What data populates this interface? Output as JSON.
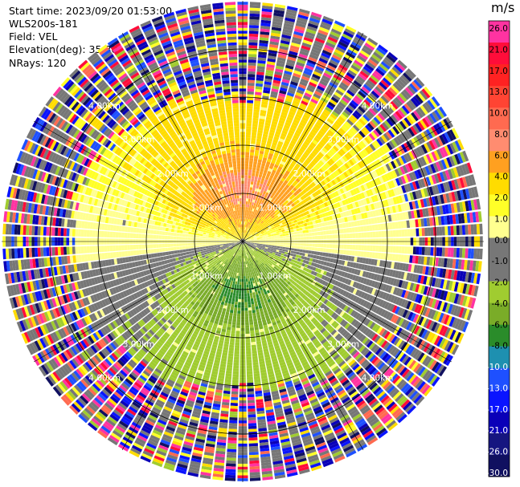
{
  "header": {
    "start_time": "Start time: 2023/09/20 01:53:00",
    "instrument": "WLS200s-181",
    "field": "Field: VEL",
    "elevation": "Elevation(deg): 35.30",
    "nrays": "NRays: 120"
  },
  "chart_data": {
    "type": "heatmap",
    "projection": "polar-ppi",
    "field": "VEL",
    "nrays": 120,
    "elevation_deg": 35.3,
    "range_rings_km": [
      1.0,
      2.0,
      3.0,
      4.0
    ],
    "ring_labels": [
      "1.00km",
      "2.00km",
      "3.00km",
      "4.00km"
    ],
    "max_range_km": 5.0,
    "colorbar": {
      "unit": "m/s",
      "tick_labels": [
        "26.0",
        "21.0",
        "17.0",
        "13.0",
        "10.0",
        "8.0",
        "6.0",
        "4.0",
        "2.0",
        "1.0",
        "0.0",
        "-1.0",
        "-2.0",
        "-4.0",
        "-6.0",
        "-8.0",
        "-10.0",
        "-13.0",
        "-17.0",
        "-21.0",
        "-26.0",
        "-30.0"
      ],
      "colors": [
        "#ff33a1",
        "#ff0d3a",
        "#ff2222",
        "#ff4433",
        "#ff6a50",
        "#ff8c70",
        "#ffa020",
        "#ffdc00",
        "#ffff28",
        "#ffff90",
        "#777777",
        "#777777",
        "#a0cc30",
        "#7aac28",
        "#2a8c2a",
        "#1e90b0",
        "#1e50ff",
        "#0a14ff",
        "#0a00b8",
        "#161680",
        "#101060"
      ]
    },
    "pattern_description_notes": ""
  }
}
